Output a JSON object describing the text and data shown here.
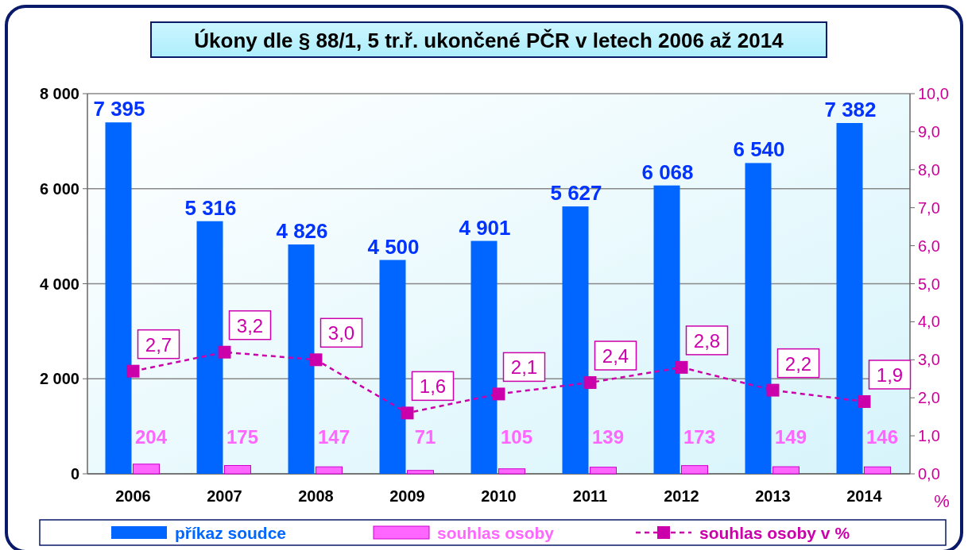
{
  "chart_data": {
    "type": "bar",
    "title": "Úkony dle § 88/1, 5 tr.ř. ukončené PČR v letech 2006 až 2014",
    "y2label": "%",
    "categories": [
      "2006",
      "2007",
      "2008",
      "2009",
      "2010",
      "2011",
      "2012",
      "2013",
      "2014"
    ],
    "series": [
      {
        "name": "příkaz soudce",
        "color": "#0066ff",
        "values": [
          7395,
          5316,
          4826,
          4500,
          4901,
          5627,
          6068,
          6540,
          7382
        ],
        "value_labels": [
          "7 395",
          "5 316",
          "4 826",
          "4 500",
          "4 901",
          "5 627",
          "6 068",
          "6 540",
          "7 382"
        ]
      },
      {
        "name": "souhlas osoby",
        "color": "#ff66ff",
        "values": [
          204,
          175,
          147,
          71,
          105,
          139,
          173,
          149,
          146
        ],
        "value_labels": [
          "204",
          "175",
          "147",
          "71",
          "105",
          "139",
          "173",
          "149",
          "146"
        ]
      },
      {
        "name": "souhlas osoby v %",
        "type": "line",
        "axis": "y2",
        "color": "#cc00aa",
        "marker": "square",
        "line_style": "dashed",
        "values": [
          2.7,
          3.2,
          3.0,
          1.6,
          2.1,
          2.4,
          2.8,
          2.2,
          1.9
        ],
        "value_labels": [
          "2,7",
          "3,2",
          "3,0",
          "1,6",
          "2,1",
          "2,4",
          "2,8",
          "2,2",
          "1,9"
        ]
      }
    ],
    "ylim": [
      0,
      8000
    ],
    "yticks": [
      0,
      {
        "value": 2000,
        "label": "2 000"
      },
      {
        "value": 4000,
        "label": "4 000"
      },
      {
        "value": 6000,
        "label": "6 000"
      },
      {
        "value": 8000,
        "label": "8 000"
      }
    ],
    "y2lim": [
      0,
      10
    ],
    "y2ticks": [
      {
        "value": 0,
        "label": "0,0"
      },
      {
        "value": 1,
        "label": "1,0"
      },
      {
        "value": 2,
        "label": "2,0"
      },
      {
        "value": 3,
        "label": "3,0"
      },
      {
        "value": 4,
        "label": "4,0"
      },
      {
        "value": 5,
        "label": "5,0"
      },
      {
        "value": 6,
        "label": "6,0"
      },
      {
        "value": 7,
        "label": "7,0"
      },
      {
        "value": 8,
        "label": "8,0"
      },
      {
        "value": 9,
        "label": "9,0"
      },
      {
        "value": 10,
        "label": "10,0"
      }
    ],
    "grid": "y",
    "legend": "bottom"
  }
}
